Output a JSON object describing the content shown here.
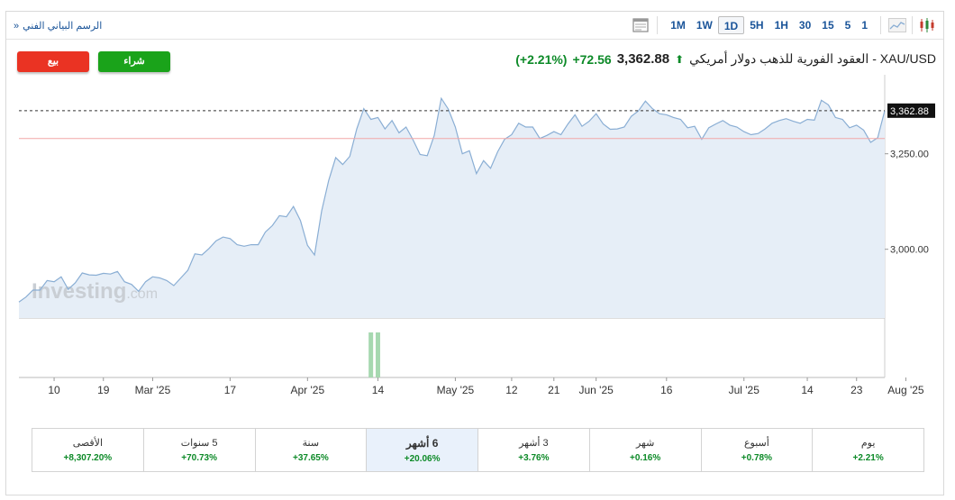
{
  "toolbar": {
    "breadcrumb": "الرسم البياني الفني",
    "breadcrumb_icon": "double-chevron-right-icon",
    "timeframes": [
      "1M",
      "1W",
      "1D",
      "5H",
      "1H",
      "30",
      "15",
      "5",
      "1"
    ],
    "active_timeframe": "1D"
  },
  "header": {
    "title": "XAU/USD - العقود الفورية للذهب دولار أمريكي",
    "price": "3,362.88",
    "change": "+72.56",
    "change_pct": "(+2.21%)",
    "direction_icon": "up-arrow-icon"
  },
  "buttons": {
    "buy": "شراء",
    "sell": "بيع"
  },
  "watermark": {
    "brand": "Investing",
    "suffix": ".com"
  },
  "colors": {
    "up": "#0d8a28",
    "sell": "#ea3323",
    "buy": "#1aa31a",
    "line": "#8aaed4",
    "area": "#e6eef7",
    "volume": "#a6d8b0",
    "ref_line": "#f2a7a7"
  },
  "chart_data": {
    "type": "area",
    "ylim": [
      2820,
      3445
    ],
    "y_ticks": [
      3000,
      3250
    ],
    "y_tick_labels": [
      "3,000.00",
      "3,250.00"
    ],
    "last_price_label": "3,362.88",
    "last_price": 3362.88,
    "prev_close": 3290,
    "x_tick_labels": [
      {
        "label": "10",
        "idx": 5
      },
      {
        "label": "19",
        "idx": 12
      },
      {
        "label": "Mar '25",
        "idx": 19
      },
      {
        "label": "17",
        "idx": 30
      },
      {
        "label": "Apr '25",
        "idx": 41
      },
      {
        "label": "14",
        "idx": 51
      },
      {
        "label": "May '25",
        "idx": 62
      },
      {
        "label": "12",
        "idx": 70
      },
      {
        "label": "21",
        "idx": 76
      },
      {
        "label": "Jun '25",
        "idx": 82
      },
      {
        "label": "16",
        "idx": 92
      },
      {
        "label": "Jul '25",
        "idx": 103
      },
      {
        "label": "14",
        "idx": 112
      },
      {
        "label": "23",
        "idx": 119
      },
      {
        "label": "Aug '25",
        "idx": 126
      }
    ],
    "values": [
      2862,
      2875,
      2893,
      2893,
      2918,
      2915,
      2928,
      2895,
      2912,
      2938,
      2933,
      2932,
      2937,
      2935,
      2942,
      2915,
      2908,
      2890,
      2915,
      2928,
      2925,
      2918,
      2905,
      2925,
      2945,
      2988,
      2985,
      3002,
      3022,
      3032,
      3028,
      3012,
      3008,
      3012,
      3012,
      3045,
      3062,
      3088,
      3085,
      3112,
      3075,
      3010,
      2985,
      3100,
      3180,
      3240,
      3222,
      3243,
      3315,
      3368,
      3340,
      3345,
      3315,
      3337,
      3305,
      3320,
      3286,
      3248,
      3245,
      3298,
      3395,
      3367,
      3320,
      3250,
      3258,
      3198,
      3232,
      3212,
      3255,
      3288,
      3300,
      3330,
      3320,
      3320,
      3290,
      3298,
      3308,
      3300,
      3328,
      3352,
      3322,
      3335,
      3355,
      3328,
      3314,
      3315,
      3320,
      3348,
      3362,
      3388,
      3368,
      3355,
      3352,
      3345,
      3340,
      3318,
      3322,
      3288,
      3318,
      3328,
      3337,
      3325,
      3320,
      3308,
      3300,
      3303,
      3315,
      3330,
      3337,
      3342,
      3335,
      3330,
      3340,
      3338,
      3390,
      3378,
      3345,
      3340,
      3318,
      3325,
      3312,
      3280,
      3292,
      3362.88
    ],
    "volume": [
      {
        "idx": 50,
        "value": 1
      },
      {
        "idx": 51,
        "value": 1
      }
    ]
  },
  "periods": [
    {
      "label": "الأقصى",
      "value": "+8,307.20%"
    },
    {
      "label": "5 سنوات",
      "value": "+70.73%"
    },
    {
      "label": "سنة",
      "value": "+37.65%"
    },
    {
      "label": "6 أشهر",
      "value": "+20.06%",
      "active": true
    },
    {
      "label": "3 أشهر",
      "value": "+3.76%"
    },
    {
      "label": "شهر",
      "value": "+0.16%"
    },
    {
      "label": "أسبوع",
      "value": "+0.78%"
    },
    {
      "label": "يوم",
      "value": "+2.21%"
    }
  ]
}
